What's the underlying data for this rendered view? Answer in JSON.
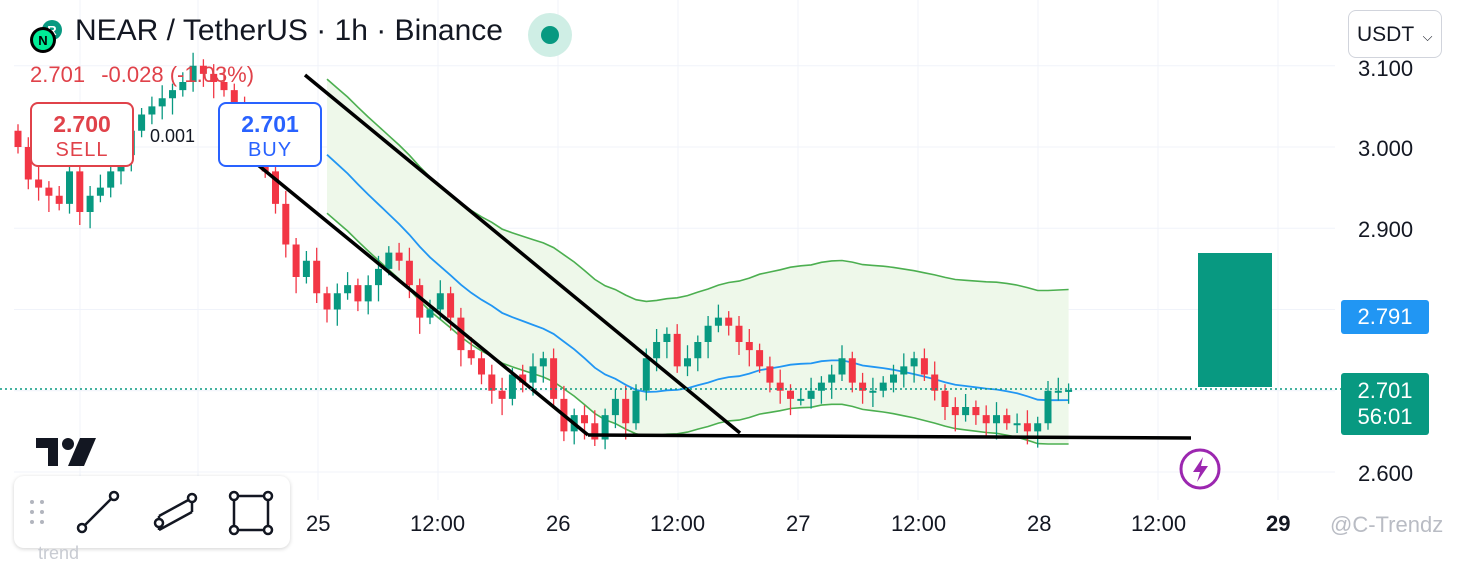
{
  "header": {
    "symbol_title": "NEAR / TetherUS · 1h · Binance",
    "last_price": "2.701",
    "change": "-0.028",
    "change_pct": "(-1.03%)",
    "currency": "USDT",
    "logo_letter": "N",
    "logo_badge": "R"
  },
  "trade": {
    "sell_price": "2.700",
    "sell_label": "SELL",
    "buy_price": "2.701",
    "buy_label": "BUY",
    "spread": "0.001"
  },
  "price_axis": {
    "labels": [
      "3.100",
      "3.000",
      "2.900",
      "2.600"
    ],
    "tags": [
      {
        "value": "2.791",
        "color": "#2196f3"
      },
      {
        "value": "2.701",
        "countdown": "56:01",
        "color": "#089981"
      }
    ]
  },
  "time_axis": {
    "labels": [
      "25",
      "12:00",
      "26",
      "12:00",
      "27",
      "12:00",
      "28",
      "12:00",
      "29"
    ]
  },
  "colors": {
    "up": "#089981",
    "down": "#f23645",
    "upper_band": "#4caf50",
    "middle_band": "#2196f3",
    "lower_band": "#4caf50",
    "band_fill": "#eef8ea",
    "trendline": "#000000",
    "flash_icon": "#9c27b0"
  },
  "drawing_tools": [
    "drag-handle-icon",
    "trendline-tool-icon",
    "channel-tool-icon",
    "rectangle-tool-icon"
  ],
  "watermark": "@C-Trendz",
  "bottom_hint": "trend",
  "chart_data": {
    "type": "candlestick",
    "symbol": "NEAR / TetherUS",
    "interval": "1h",
    "x_ticks": [
      "25",
      "12:00",
      "26",
      "12:00",
      "27",
      "12:00",
      "28",
      "12:00",
      "29"
    ],
    "ylim": [
      2.58,
      3.14
    ],
    "y_ticks": [
      3.1,
      3.0,
      2.9,
      2.6
    ],
    "closes": [
      3.0,
      2.96,
      2.95,
      2.94,
      2.93,
      2.97,
      2.92,
      2.94,
      2.95,
      2.97,
      2.99,
      3.02,
      3.04,
      3.05,
      3.06,
      3.07,
      3.08,
      3.1,
      3.09,
      3.08,
      3.07,
      3.05,
      3.03,
      3.0,
      2.97,
      2.93,
      2.88,
      2.84,
      2.86,
      2.82,
      2.8,
      2.82,
      2.83,
      2.81,
      2.83,
      2.85,
      2.87,
      2.86,
      2.83,
      2.79,
      2.8,
      2.82,
      2.79,
      2.75,
      2.74,
      2.72,
      2.7,
      2.69,
      2.72,
      2.71,
      2.73,
      2.74,
      2.69,
      2.65,
      2.67,
      2.66,
      2.64,
      2.67,
      2.69,
      2.66,
      2.7,
      2.74,
      2.76,
      2.77,
      2.73,
      2.74,
      2.76,
      2.78,
      2.79,
      2.78,
      2.76,
      2.75,
      2.73,
      2.71,
      2.7,
      2.69,
      2.69,
      2.7,
      2.71,
      2.72,
      2.74,
      2.71,
      2.7,
      2.7,
      2.71,
      2.72,
      2.73,
      2.74,
      2.72,
      2.7,
      2.68,
      2.67,
      2.68,
      2.67,
      2.66,
      2.67,
      2.66,
      2.66,
      2.65,
      2.66,
      2.7,
      2.7,
      2.701
    ],
    "overlays": [
      {
        "name": "upper band",
        "type": "line"
      },
      {
        "name": "middle band",
        "type": "line"
      },
      {
        "name": "lower band",
        "type": "line"
      }
    ],
    "channel": {
      "upper_from": 3.09,
      "upper_to": 2.65,
      "lower_from": 2.98,
      "lower_to": 2.64,
      "support": 2.64
    },
    "projection_box": {
      "from": 2.701,
      "to": 2.87
    }
  }
}
